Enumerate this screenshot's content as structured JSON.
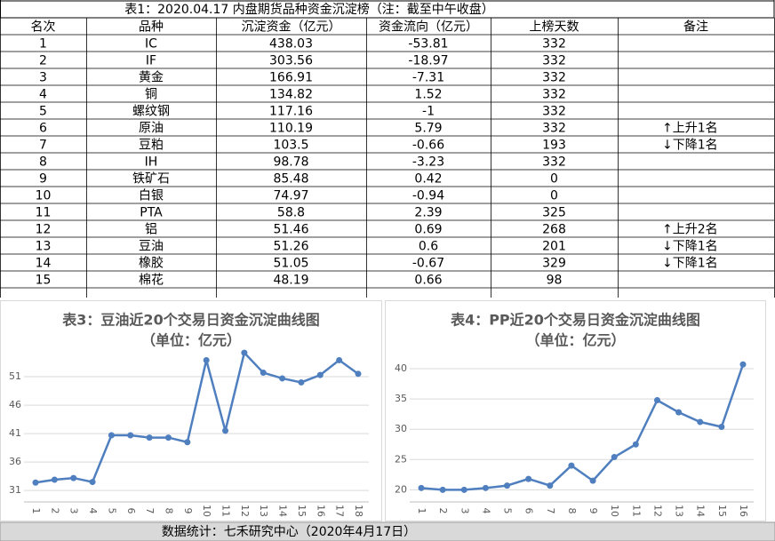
{
  "table": {
    "title": "表1：2020.04.17 内盘期货品种资金沉淀榜（注：截至中午收盘）",
    "header": [
      "名次",
      "品种",
      "沉淀资金（亿元）",
      "资金流向（亿元）",
      "上榜天数",
      "备注"
    ],
    "rows": [
      [
        "1",
        "IC",
        "438.03",
        "-53.81",
        "332",
        ""
      ],
      [
        "2",
        "IF",
        "303.56",
        "-18.97",
        "332",
        ""
      ],
      [
        "3",
        "黄金",
        "166.91",
        "-7.31",
        "332",
        ""
      ],
      [
        "4",
        "铜",
        "134.82",
        "1.52",
        "332",
        ""
      ],
      [
        "5",
        "螺纹钢",
        "117.16",
        "-1",
        "332",
        ""
      ],
      [
        "6",
        "原油",
        "110.19",
        "5.79",
        "332",
        "↑上升1名"
      ],
      [
        "7",
        "豆粕",
        "103.5",
        "-0.66",
        "193",
        "↓下降1名"
      ],
      [
        "8",
        "IH",
        "98.78",
        "-3.23",
        "332",
        ""
      ],
      [
        "9",
        "铁矿石",
        "85.48",
        "0.42",
        "0",
        ""
      ],
      [
        "10",
        "白银",
        "74.97",
        "-0.94",
        "0",
        ""
      ],
      [
        "11",
        "PTA",
        "58.8",
        "2.39",
        "325",
        ""
      ],
      [
        "12",
        "铝",
        "51.46",
        "0.69",
        "268",
        "↑上升2名"
      ],
      [
        "13",
        "豆油",
        "51.26",
        "0.6",
        "201",
        "↓下降1名"
      ],
      [
        "14",
        "橡胶",
        "51.05",
        "-0.67",
        "329",
        "↓下降1名"
      ],
      [
        "15",
        "棉花",
        "48.19",
        "0.66",
        "98",
        ""
      ]
    ]
  },
  "chart_data": [
    {
      "type": "line",
      "title": "表3：豆油近20个交易日资金沉淀曲线图",
      "subtitle": "（单位：亿元）",
      "x": [
        1,
        2,
        3,
        4,
        5,
        6,
        7,
        8,
        9,
        10,
        11,
        12,
        13,
        14,
        15,
        16,
        17,
        18
      ],
      "series": [
        {
          "color": "#4f7fbf",
          "values": [
            32.4,
            32.9,
            33.2,
            32.5,
            40.7,
            40.7,
            40.3,
            40.3,
            39.5,
            53.9,
            41.5,
            55.2,
            51.7,
            50.7,
            50.0,
            51.3,
            53.9,
            51.5
          ]
        }
      ],
      "xlim": [
        1,
        18
      ],
      "ylim": [
        29,
        56
      ],
      "yticks": [
        31,
        36,
        41,
        46,
        51
      ],
      "grid": true
    },
    {
      "type": "line",
      "title": "表4：PP近20个交易日资金沉淀曲线图",
      "subtitle": "（单位：亿元）",
      "x": [
        1,
        2,
        3,
        4,
        5,
        6,
        7,
        8,
        9,
        10,
        11,
        12,
        13,
        14,
        15,
        16
      ],
      "series": [
        {
          "color": "#4f7fbf",
          "values": [
            20.3,
            20.0,
            20.0,
            20.3,
            20.7,
            21.8,
            20.7,
            24.0,
            21.5,
            25.4,
            27.5,
            34.8,
            32.8,
            31.2,
            30.4,
            40.7
          ]
        }
      ],
      "xlim": [
        1,
        16
      ],
      "ylim": [
        18,
        42.5
      ],
      "yticks": [
        20,
        25,
        30,
        35,
        40
      ],
      "grid": true
    }
  ],
  "footer": "数据统计：七禾研究中心（2020年4月17日）"
}
